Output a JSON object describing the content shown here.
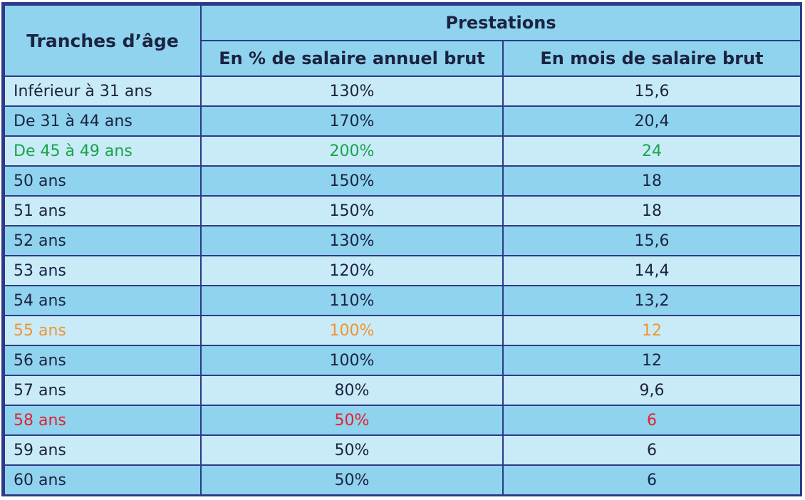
{
  "table": {
    "header": {
      "age_range": "Tranches d’âge",
      "benefits": "Prestations",
      "percent_salary": "En % de salaire annuel brut",
      "months_salary": "En mois de salaire brut"
    },
    "rows": [
      {
        "age": "Inférieur à 31 ans",
        "percent": "130%",
        "months": "15,6",
        "color": "#1b2340"
      },
      {
        "age": "De 31 à 44 ans",
        "percent": "170%",
        "months": "20,4",
        "color": "#1b2340"
      },
      {
        "age": "De 45 à 49 ans",
        "percent": "200%",
        "months": "24",
        "color": "#1aa34a"
      },
      {
        "age": "50 ans",
        "percent": "150%",
        "months": "18",
        "color": "#1b2340"
      },
      {
        "age": "51 ans",
        "percent": "150%",
        "months": "18",
        "color": "#1b2340"
      },
      {
        "age": "52 ans",
        "percent": "130%",
        "months": "15,6",
        "color": "#1b2340"
      },
      {
        "age": "53 ans",
        "percent": "120%",
        "months": "14,4",
        "color": "#1b2340"
      },
      {
        "age": "54 ans",
        "percent": "110%",
        "months": "13,2",
        "color": "#1b2340"
      },
      {
        "age": "55 ans",
        "percent": "100%",
        "months": "12",
        "color": "#f0952e"
      },
      {
        "age": "56 ans",
        "percent": "100%",
        "months": "12",
        "color": "#1b2340"
      },
      {
        "age": "57 ans",
        "percent": "80%",
        "months": "9,6",
        "color": "#1b2340"
      },
      {
        "age": "58 ans",
        "percent": "50%",
        "months": "6",
        "color": "#e8202a"
      },
      {
        "age": "59 ans",
        "percent": "50%",
        "months": "6",
        "color": "#1b2340"
      },
      {
        "age": "60 ans",
        "percent": "50%",
        "months": "6",
        "color": "#1b2340"
      }
    ]
  }
}
